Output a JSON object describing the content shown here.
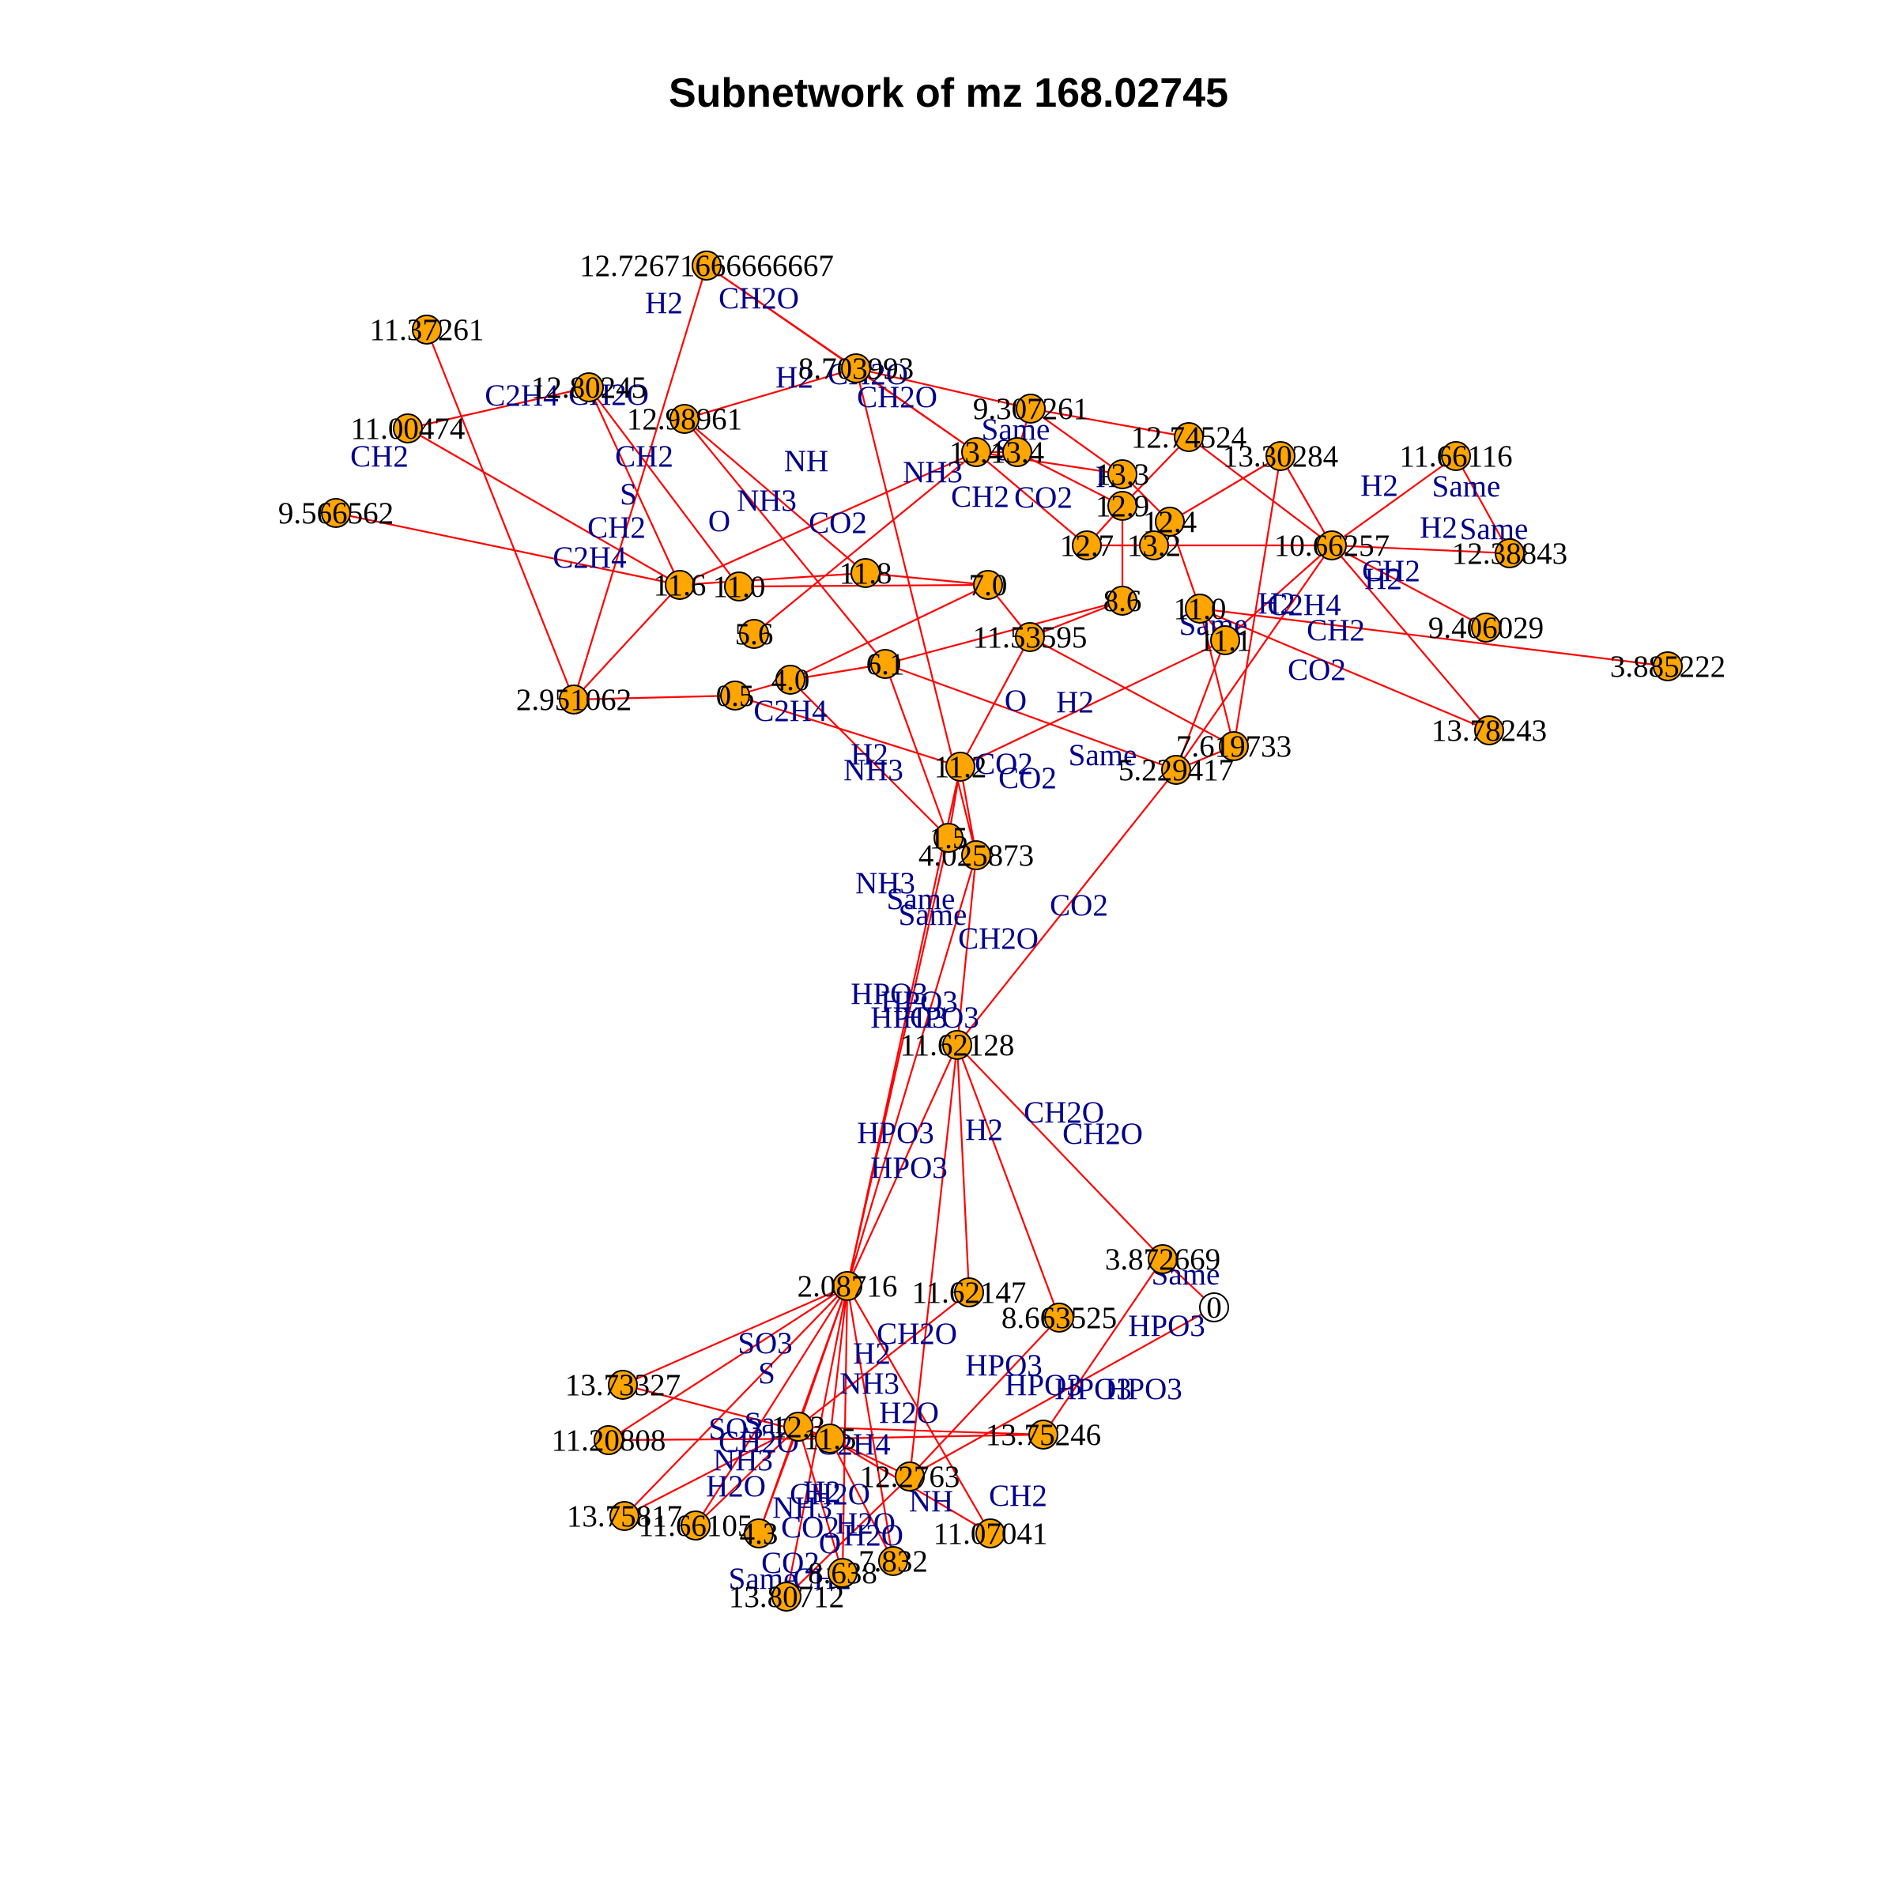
{
  "title": "Subnetwork of mz 168.02745",
  "colors": {
    "edge": "#ff0000",
    "node_fill": "#ffa500",
    "node_stroke": "#000000",
    "node_label": "#000000",
    "edge_label": "#00008b",
    "background": "#ffffff"
  },
  "nodes": [
    {
      "id": "n1",
      "label": "12.72671666666667"
    },
    {
      "id": "n2",
      "label": "11.37261"
    },
    {
      "id": "n3",
      "label": "12.80245"
    },
    {
      "id": "n4",
      "label": "11.00474"
    },
    {
      "id": "n5",
      "label": "12.98961"
    },
    {
      "id": "n6",
      "label": "9.566562"
    },
    {
      "id": "n7",
      "label": "8.703993"
    },
    {
      "id": "n8",
      "label": "9.307261"
    },
    {
      "id": "n9",
      "label": "12.74524"
    },
    {
      "id": "n10",
      "label": "13.30284"
    },
    {
      "id": "n11",
      "label": "11.66116"
    },
    {
      "id": "n12",
      "label": "12.38843"
    },
    {
      "id": "n13",
      "label": "9.406029"
    },
    {
      "id": "n14",
      "label": "3.885222"
    },
    {
      "id": "n15",
      "label": "13.78243"
    },
    {
      "id": "n16",
      "label": "7.619733"
    },
    {
      "id": "n17",
      "label": "5.229417"
    },
    {
      "id": "n18",
      "label": "2.951062"
    },
    {
      "id": "n19",
      "label": "4.025873"
    },
    {
      "id": "n20",
      "label": "11.62128"
    },
    {
      "id": "n21",
      "label": "3.872669"
    },
    {
      "id": "n22",
      "label": "2.08716"
    },
    {
      "id": "n23",
      "label": "11.62147"
    },
    {
      "id": "n24",
      "label": "8.663525"
    },
    {
      "id": "n25",
      "label": "0"
    },
    {
      "id": "n26",
      "label": "13.73327"
    },
    {
      "id": "n27",
      "label": "11.20808"
    },
    {
      "id": "n28",
      "label": "13.75246"
    },
    {
      "id": "n29",
      "label": "13.75817"
    },
    {
      "id": "n30",
      "label": "11.07041"
    },
    {
      "id": "n31",
      "label": "13.80712"
    },
    {
      "id": "n32",
      "label": "11.66105"
    },
    {
      "id": "n33",
      "label": "12.2763"
    },
    {
      "id": "n34",
      "label": "7.832"
    },
    {
      "id": "n35",
      "label": "8.638"
    },
    {
      "id": "n36",
      "label": "11.6"
    },
    {
      "id": "n37",
      "label": "5.6"
    },
    {
      "id": "n38",
      "label": "10.66257"
    },
    {
      "id": "n39",
      "label": "11.53595"
    },
    {
      "id": "n40",
      "label": "11.0"
    },
    {
      "id": "n41",
      "label": "13.4"
    },
    {
      "id": "n42",
      "label": "13.4"
    },
    {
      "id": "n43",
      "label": "13.3"
    },
    {
      "id": "n44",
      "label": "12.9"
    },
    {
      "id": "n45",
      "label": "12.4"
    },
    {
      "id": "n46",
      "label": "11.0"
    },
    {
      "id": "n47",
      "label": "11.1"
    },
    {
      "id": "n48",
      "label": "8.6"
    },
    {
      "id": "n49",
      "label": "7.0"
    },
    {
      "id": "n50",
      "label": "6.1"
    },
    {
      "id": "n51",
      "label": "4.0"
    },
    {
      "id": "n52",
      "label": "0.5"
    },
    {
      "id": "n53",
      "label": "12.7"
    },
    {
      "id": "n54",
      "label": "13.2"
    },
    {
      "id": "n55",
      "label": "11.8"
    },
    {
      "id": "n56",
      "label": "11.2"
    },
    {
      "id": "n57",
      "label": "1.5"
    },
    {
      "id": "n58",
      "label": "12.3"
    },
    {
      "id": "n59",
      "label": "11.5"
    },
    {
      "id": "n60",
      "label": "4.3"
    }
  ],
  "edge_labels": [
    "H2",
    "CH2O",
    "C2H4",
    "CH2O",
    "CH2",
    "H2",
    "CH2",
    "S",
    "NH",
    "CH2",
    "NH3",
    "O",
    "CO2",
    "C2H4",
    "CH2O",
    "CH2O",
    "Same",
    "NH3",
    "S",
    "CH2",
    "CO2",
    "H2",
    "H2",
    "Same",
    "H2",
    "Same",
    "CH2",
    "H2",
    "Same",
    "C2H4",
    "CO2",
    "CH2",
    "H2",
    "O",
    "H2",
    "C2H4",
    "H2",
    "NH3",
    "CO2",
    "CO2",
    "Same",
    "NH3",
    "Same",
    "Same",
    "CO2",
    "CH2O",
    "HPO3",
    "HPO3",
    "HPO3",
    "HPO3",
    "CH2O",
    "H2",
    "CH2O",
    "HPO3",
    "HPO3",
    "Same",
    "HPO3",
    "HPO3",
    "SO3",
    "S",
    "CH2O",
    "H2",
    "HPO3",
    "NH3",
    "HPO3",
    "HPO3",
    "NH",
    "CH2",
    "H2O",
    "SO3",
    "H2O",
    "Same",
    "NH3",
    "CH2O",
    "H2",
    "NH3",
    "C2H4",
    "CO2",
    "O",
    "H2O",
    "CO2",
    "CH2",
    "Same",
    "CH2O",
    "H2O"
  ]
}
